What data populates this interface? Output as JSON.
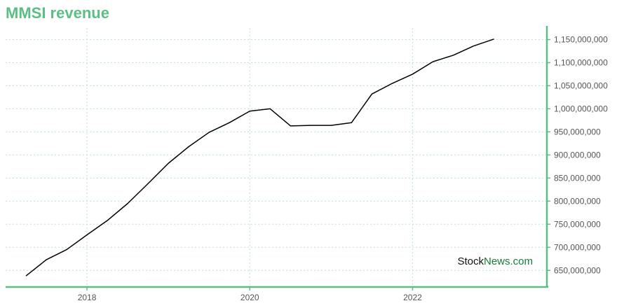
{
  "chart_data": {
    "type": "line",
    "title": "MMSI revenue",
    "xlabel": "",
    "ylabel": "",
    "x": [
      2017.25,
      2017.5,
      2017.75,
      2018.0,
      2018.25,
      2018.5,
      2018.75,
      2019.0,
      2019.25,
      2019.5,
      2019.75,
      2020.0,
      2020.25,
      2020.5,
      2020.75,
      2021.0,
      2021.25,
      2021.5,
      2021.75,
      2022.0,
      2022.25,
      2022.5,
      2022.75,
      2023.0
    ],
    "series": [
      {
        "values": [
          638000000,
          673000000,
          695000000,
          727000000,
          758000000,
          795000000,
          838000000,
          882000000,
          918000000,
          949000000,
          970000000,
          995000000,
          1000000000,
          963000000,
          964000000,
          964000000,
          970000000,
          1032000000,
          1055000000,
          1075000000,
          1102000000,
          1116000000,
          1136000000,
          1151000000
        ]
      }
    ],
    "x_ticks": [
      "2018",
      "2020",
      "2022"
    ],
    "x_tick_values": [
      2018,
      2020,
      2022
    ],
    "y_ticks": [
      "650,000,000",
      "700,000,000",
      "750,000,000",
      "800,000,000",
      "850,000,000",
      "900,000,000",
      "950,000,000",
      "1,000,000,000",
      "1,050,000,000",
      "1,100,000,000",
      "1,150,000,000"
    ],
    "y_tick_values": [
      650000000,
      700000000,
      750000000,
      800000000,
      850000000,
      900000000,
      950000000,
      1000000000,
      1050000000,
      1100000000,
      1150000000
    ],
    "xlim": [
      2017.0,
      2023.65
    ],
    "ylim": [
      614000000,
      1175000000
    ],
    "grid": true,
    "legend": "none",
    "colors": {
      "title": "#5bbf85",
      "axis": "#5bbf85",
      "grid": "#b8e6c9",
      "line": "#000000"
    }
  },
  "watermark": {
    "part1": "Stock",
    "part2": "News.com"
  }
}
